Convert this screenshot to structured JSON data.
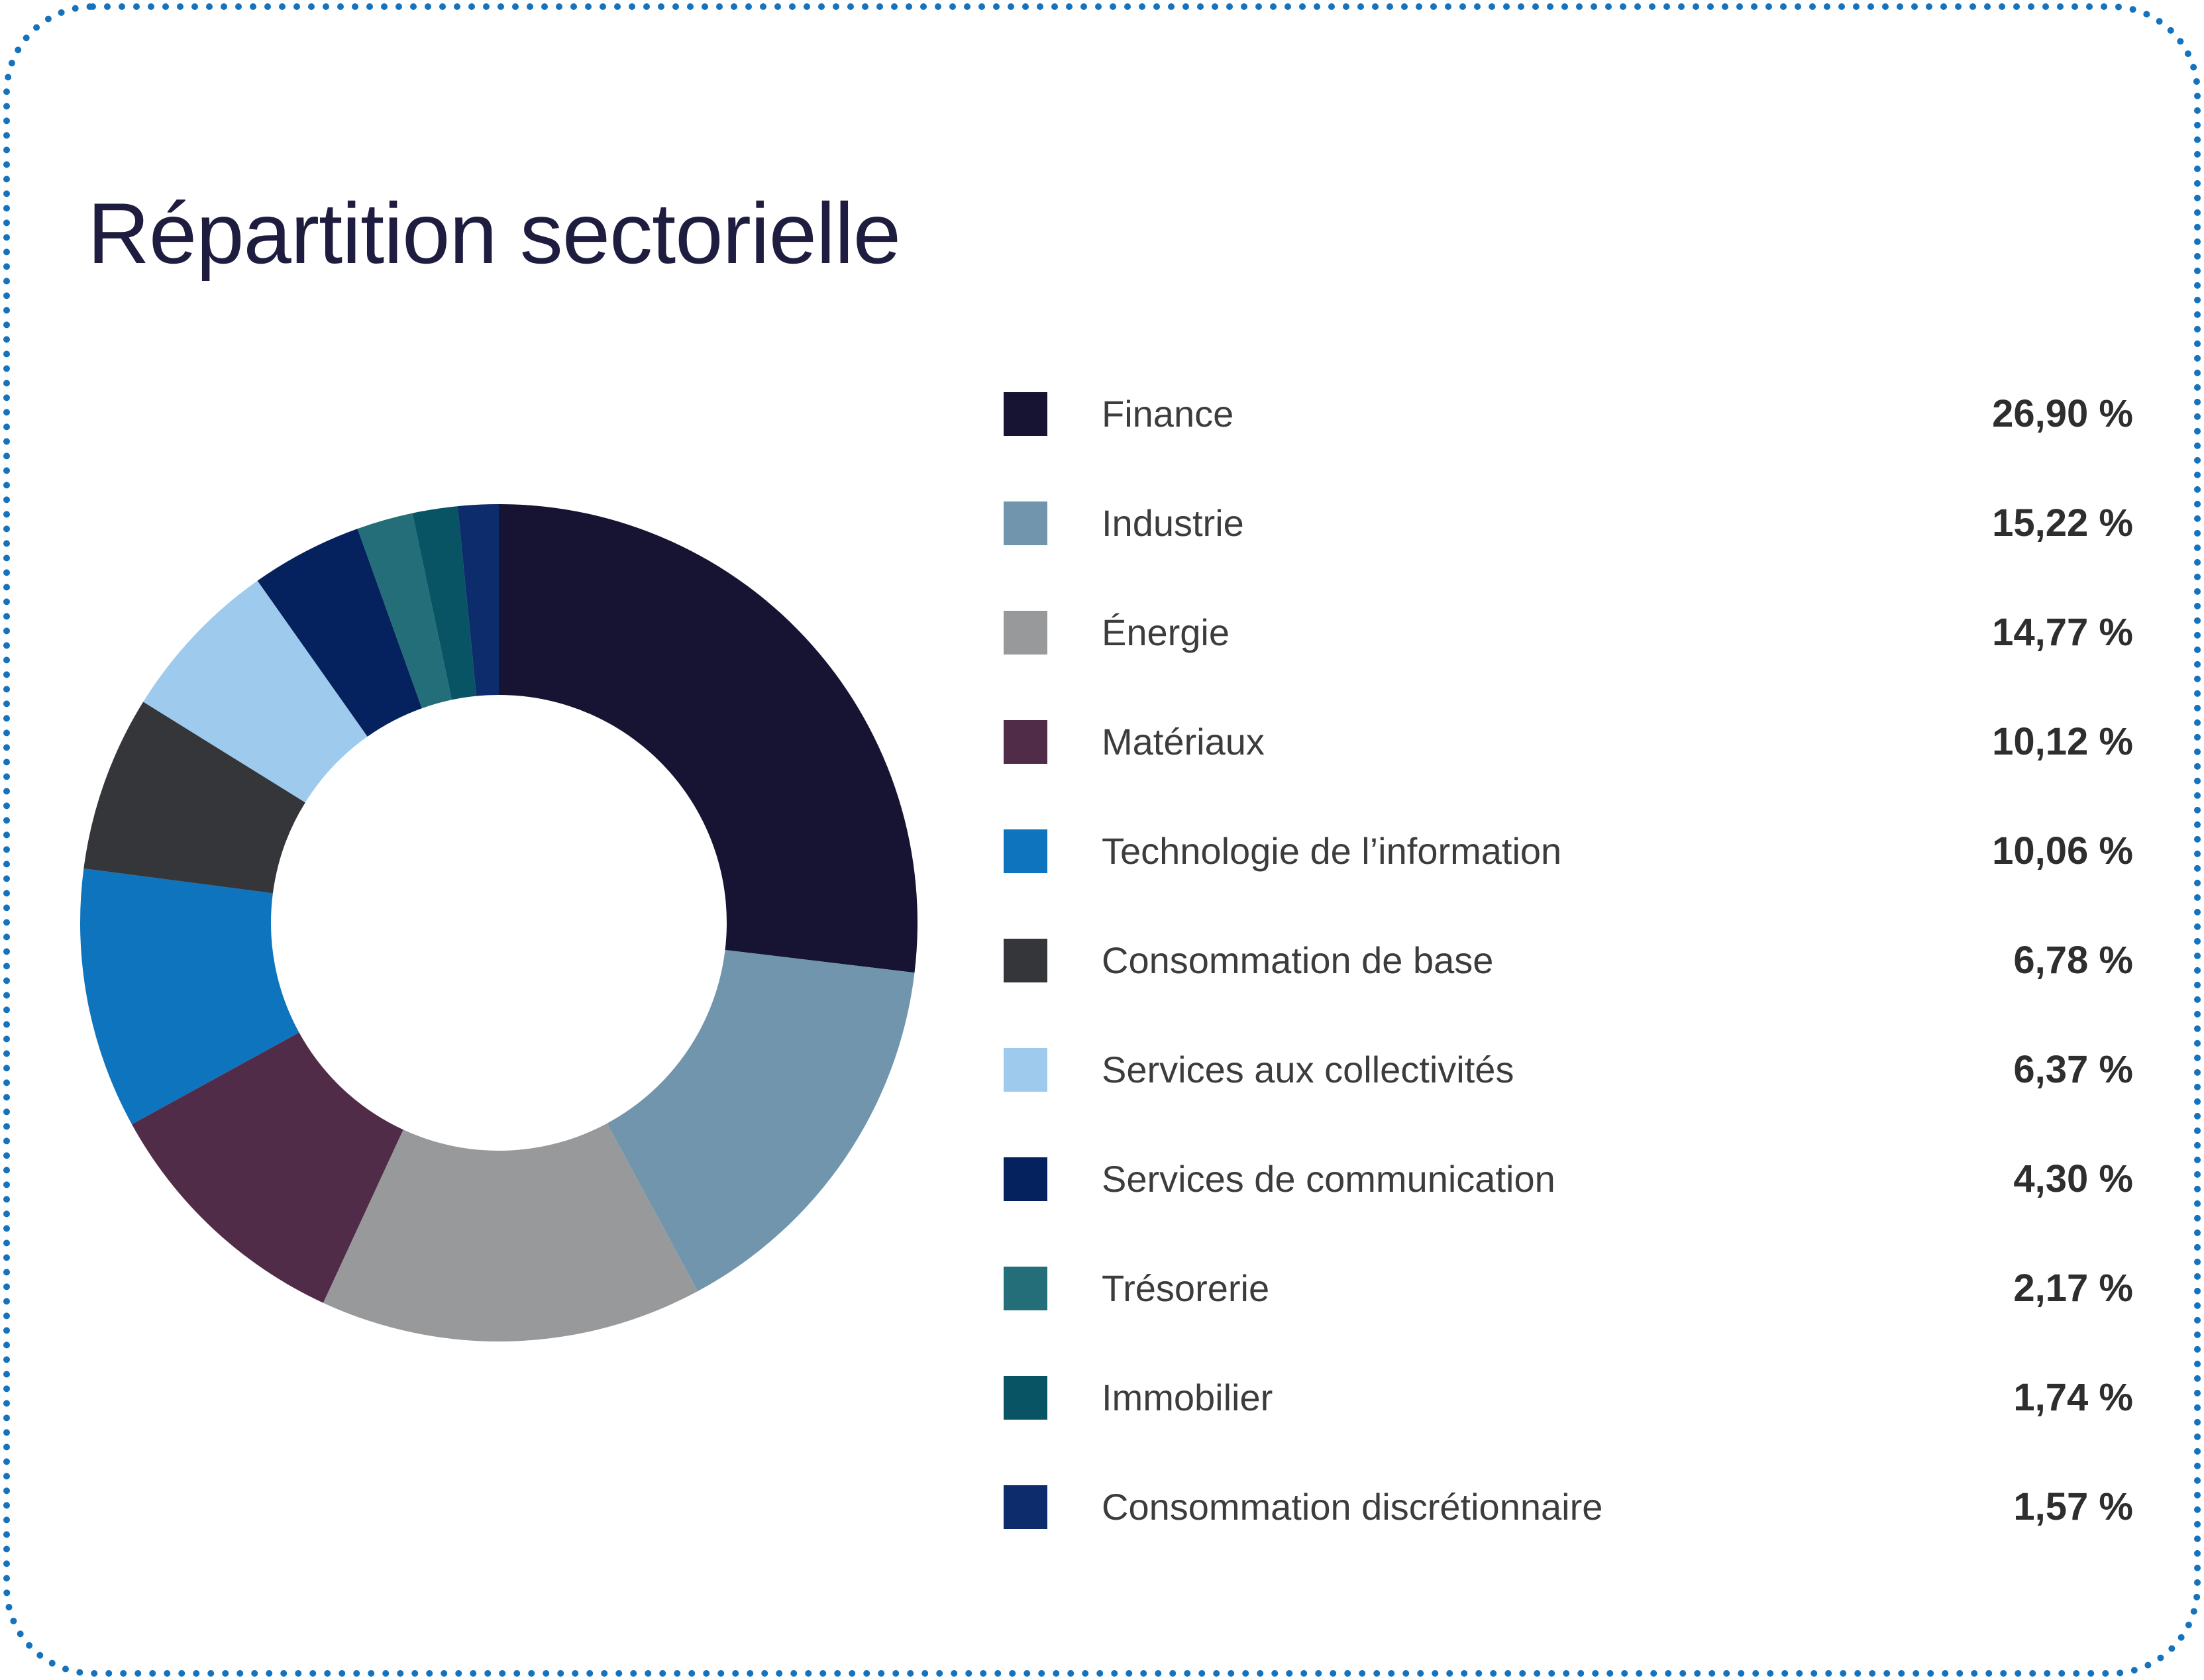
{
  "page": {
    "background_color": "#ffffff",
    "border_color": "#1572bc",
    "border_style": "dotted-rounded"
  },
  "header": {
    "title": "Répartition sectorielle",
    "title_color": "#1e1d3f"
  },
  "chart_data": {
    "type": "pie",
    "subtype": "donut",
    "title": "Répartition sectorielle",
    "start_angle_deg_from_top": 0,
    "direction": "clockwise",
    "inner_radius_ratio": 0.545,
    "legend_position": "right",
    "categories": [
      "Finance",
      "Industrie",
      "Énergie",
      "Matériaux",
      "Technologie de l’information",
      "Consommation de base",
      "Services aux collectivités",
      "Services de communication",
      "Trésorerie",
      "Immobilier",
      "Consommation discrétionnaire"
    ],
    "values": [
      26.9,
      15.22,
      14.77,
      10.12,
      10.06,
      6.78,
      6.37,
      4.3,
      2.17,
      1.74,
      1.57
    ],
    "display_values": [
      "26,90 %",
      "15,22 %",
      "14,77 %",
      "10,12 %",
      "10,06 %",
      "6,78 %",
      "6,37 %",
      "4,30 %",
      "2,17 %",
      "1,74 %",
      "1,57 %"
    ],
    "colors": [
      "#161432",
      "#7095ac",
      "#98999b",
      "#512c48",
      "#0f74be",
      "#343639",
      "#9ecbed",
      "#05215e",
      "#236e79",
      "#085364",
      "#0c2c6c"
    ]
  }
}
